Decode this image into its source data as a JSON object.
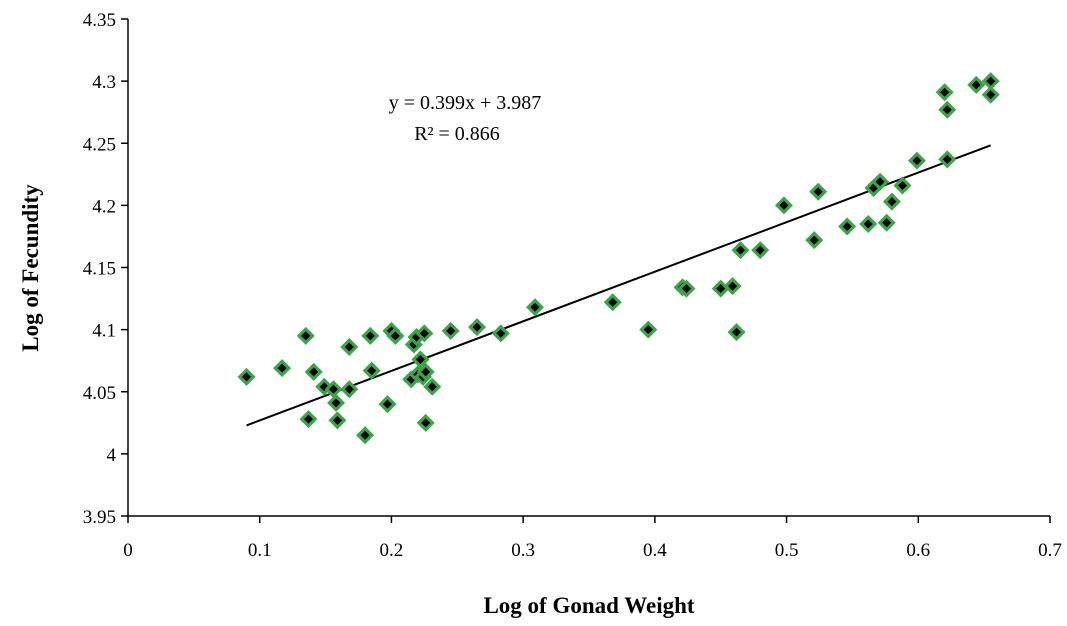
{
  "chart_data": {
    "type": "scatter",
    "title": "",
    "xlabel": "Log of Gonad Weight",
    "ylabel": "Log of Fecundity",
    "xlim": [
      0,
      0.7
    ],
    "ylim": [
      3.95,
      4.35
    ],
    "x_ticks": [
      "0",
      "0.1",
      "0.2",
      "0.3",
      "0.4",
      "0.5",
      "0.6",
      "0.7"
    ],
    "y_ticks": [
      "3.95",
      "4",
      "4.05",
      "4.1",
      "4.15",
      "4.2",
      "4.25",
      "4.3",
      "4.35"
    ],
    "grid": false,
    "legend": "none",
    "marker": {
      "shape": "diamond",
      "fill": "#000000",
      "outline": "#3ca34a"
    },
    "trendline": {
      "equation": "y = 0.399x + 3.987",
      "r_squared": "R² = 0.866",
      "slope": 0.399,
      "intercept": 3.987,
      "x_range": [
        0.09,
        0.655
      ],
      "color": "#000000"
    },
    "points": [
      [
        0.09,
        4.062
      ],
      [
        0.117,
        4.069
      ],
      [
        0.135,
        4.095
      ],
      [
        0.137,
        4.028
      ],
      [
        0.141,
        4.066
      ],
      [
        0.149,
        4.054
      ],
      [
        0.156,
        4.052
      ],
      [
        0.158,
        4.041
      ],
      [
        0.159,
        4.027
      ],
      [
        0.168,
        4.052
      ],
      [
        0.168,
        4.086
      ],
      [
        0.18,
        4.015
      ],
      [
        0.184,
        4.095
      ],
      [
        0.185,
        4.067
      ],
      [
        0.197,
        4.04
      ],
      [
        0.2,
        4.099
      ],
      [
        0.203,
        4.095
      ],
      [
        0.215,
        4.06
      ],
      [
        0.217,
        4.088
      ],
      [
        0.219,
        4.094
      ],
      [
        0.22,
        4.064
      ],
      [
        0.222,
        4.076
      ],
      [
        0.224,
        4.062
      ],
      [
        0.225,
        4.097
      ],
      [
        0.226,
        4.025
      ],
      [
        0.226,
        4.066
      ],
      [
        0.231,
        4.054
      ],
      [
        0.245,
        4.099
      ],
      [
        0.265,
        4.102
      ],
      [
        0.283,
        4.097
      ],
      [
        0.309,
        4.118
      ],
      [
        0.368,
        4.122
      ],
      [
        0.395,
        4.1
      ],
      [
        0.421,
        4.134
      ],
      [
        0.424,
        4.133
      ],
      [
        0.45,
        4.133
      ],
      [
        0.459,
        4.135
      ],
      [
        0.462,
        4.098
      ],
      [
        0.465,
        4.164
      ],
      [
        0.48,
        4.164
      ],
      [
        0.498,
        4.2
      ],
      [
        0.521,
        4.172
      ],
      [
        0.524,
        4.211
      ],
      [
        0.546,
        4.183
      ],
      [
        0.562,
        4.185
      ],
      [
        0.566,
        4.214
      ],
      [
        0.571,
        4.219
      ],
      [
        0.576,
        4.186
      ],
      [
        0.58,
        4.203
      ],
      [
        0.588,
        4.216
      ],
      [
        0.599,
        4.236
      ],
      [
        0.62,
        4.291
      ],
      [
        0.622,
        4.237
      ],
      [
        0.622,
        4.277
      ],
      [
        0.644,
        4.297
      ],
      [
        0.655,
        4.3
      ],
      [
        0.655,
        4.289
      ]
    ]
  }
}
